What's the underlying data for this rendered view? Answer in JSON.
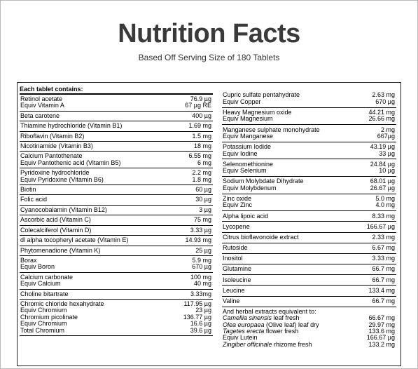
{
  "header": {
    "title": "Nutrition Facts",
    "subtitle": "Based Off Serving Size of 180 Tablets"
  },
  "left": {
    "heading": "Each tablet contains:",
    "groups": [
      [
        [
          "Retinol acetate",
          "76.9 µg"
        ],
        [
          "Equiv Vitamin A",
          "67 µg RE"
        ]
      ],
      [
        [
          "Beta carotene",
          "400 µg"
        ]
      ],
      [
        [
          "Thiamine hydrochloride (Vitamin B1)",
          "1.69 mg"
        ]
      ],
      [
        [
          "Riboflavin (Vitamin B2)",
          "1.5 mg"
        ]
      ],
      [
        [
          "Nicotinamide (Vitamin B3)",
          "18 mg"
        ]
      ],
      [
        [
          "Calcium Pantothenate",
          "6.55 mg"
        ],
        [
          "Equiv Pantothenic acid (Vitamin B5)",
          "6 mg"
        ]
      ],
      [
        [
          "Pyridoxine hydrochloride",
          "2.2 mg"
        ],
        [
          "Equiv Pyridoxine (Vitamin B6)",
          "1.8 mg"
        ]
      ],
      [
        [
          "Biotin",
          "60 µg"
        ]
      ],
      [
        [
          "Folic acid",
          "30 µg"
        ]
      ],
      [
        [
          "Cyanocobalamin (Vitamin B12)",
          "3 µg"
        ]
      ],
      [
        [
          "Ascorbic acid (Vitamin C)",
          "75 mg"
        ]
      ],
      [
        [
          "Colecalciferol (Vitamin D)",
          "3.33 µg"
        ]
      ],
      [
        [
          "dl alpha tocopheryl acetate (Vitamin E)",
          "14.93 mg"
        ]
      ],
      [
        [
          "Phytomenadione (Vitamin K)",
          "25 µg"
        ]
      ],
      [
        [
          "Borax",
          "5.9 mg"
        ],
        [
          "Equiv Boron",
          "670 µg"
        ]
      ],
      [
        [
          "Calcium carbonate",
          "100 mg"
        ],
        [
          "Equiv Calcium",
          "40 mg"
        ]
      ],
      [
        [
          "Choline bitartrate",
          "3.33mg"
        ]
      ],
      [
        [
          "Chromic chloride hexahydrate",
          "117.95 µg"
        ],
        [
          "Equiv Chromium",
          "23 µg"
        ],
        [
          "Chromium picolinate",
          "136.77 µg"
        ],
        [
          "Equiv Chromium",
          "16.6 µg"
        ],
        [
          "Total Chromium",
          "39.6 µg"
        ]
      ]
    ]
  },
  "right": {
    "groups": [
      [
        [
          "Cupric sulfate pentahydrate",
          "2.63 mg"
        ],
        [
          "Equiv Copper",
          "670 µg"
        ]
      ],
      [
        [
          "Heavy Magnesium oxide",
          "44.21 mg"
        ],
        [
          "Equiv Magnesium",
          "26.66 mg"
        ]
      ],
      [
        [
          "Manganese sulphate monohydrate",
          "2 mg"
        ],
        [
          "Equiv Manganese",
          "667µg"
        ]
      ],
      [
        [
          "Potassium Iodide",
          "43.19 µg"
        ],
        [
          "Equiv Iodine",
          "33 µg"
        ]
      ],
      [
        [
          "Selenomethionine",
          "24.84 µg"
        ],
        [
          "Equiv Selenium",
          "10 µg"
        ]
      ],
      [
        [
          "Sodium Molybdate Dihydrate",
          "68.01 µg"
        ],
        [
          "Equiv Molybdenum",
          "26.67 µg"
        ]
      ],
      [
        [
          "Zinc oxide",
          "5.0 mg"
        ],
        [
          "Equiv Zinc",
          "4.0 mg"
        ]
      ],
      [
        [
          "Alpha lipoic acid",
          "8.33 mg"
        ]
      ],
      [
        [
          "Lycopene",
          "166.67 µg"
        ]
      ],
      [
        [
          "Citrus bioflavonoide extract",
          "2.33 mg"
        ]
      ],
      [
        [
          "Rutoside",
          "6.67 mg"
        ]
      ],
      [
        [
          "Inositol",
          "3.33 mg"
        ]
      ],
      [
        [
          "Glutamine",
          "66.7 mg"
        ]
      ],
      [
        [
          "Isoleucine",
          "66.7 mg"
        ]
      ],
      [
        [
          "Leucine",
          "133.4 mg"
        ]
      ],
      [
        [
          "Valine",
          "66.7 mg"
        ]
      ]
    ],
    "herbal": {
      "heading": "And herbal extracts equivalent to:",
      "rows": [
        {
          "italic": "Camellia sinensis",
          "name": " leaf fresh",
          "value": "66.67 mg"
        },
        {
          "italic": "Olea europaea",
          "name": " (Olive leaf) leaf dry",
          "value": "29.97 mg"
        },
        {
          "italic": "Tagetes erecta",
          "name": " flower fresh",
          "value": "133.6 mg"
        },
        {
          "name": "Equiv Lutein",
          "value": "166.67 µg"
        },
        {
          "italic": "Zingiber officinale",
          "name": " rhizome fresh",
          "value": "133.2 mg"
        }
      ]
    }
  }
}
